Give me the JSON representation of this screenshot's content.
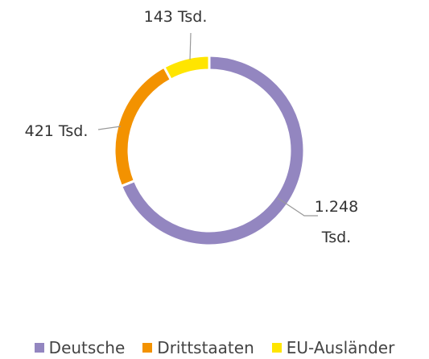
{
  "chart_data": {
    "type": "pie",
    "categories": [
      "Deutsche",
      "Drittstaaten",
      "EU-Ausländer"
    ],
    "values": [
      1248,
      421,
      143
    ],
    "value_labels": [
      "1.248 Tsd.",
      "421 Tsd.",
      "143 Tsd."
    ],
    "colors": [
      "#9386c0",
      "#f39200",
      "#ffe500"
    ],
    "legend": "bottom"
  }
}
